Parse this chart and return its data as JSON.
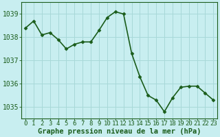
{
  "x": [
    0,
    1,
    2,
    3,
    4,
    5,
    6,
    7,
    8,
    9,
    10,
    11,
    12,
    13,
    14,
    15,
    16,
    17,
    18,
    19,
    20,
    21,
    22,
    23
  ],
  "y": [
    1038.4,
    1038.7,
    1038.1,
    1038.2,
    1037.9,
    1037.5,
    1037.7,
    1037.8,
    1037.8,
    1038.3,
    1038.85,
    1039.1,
    1039.0,
    1037.3,
    1036.3,
    1035.5,
    1035.3,
    1034.8,
    1035.4,
    1035.85,
    1035.9,
    1035.9,
    1035.6,
    1035.3
  ],
  "line_color": "#1a5c1a",
  "marker": "D",
  "marker_size": 2.5,
  "bg_color": "#c8eef0",
  "grid_color": "#a8d8d8",
  "ylabel_ticks": [
    1035,
    1036,
    1037,
    1038,
    1039
  ],
  "xticks": [
    0,
    1,
    2,
    3,
    4,
    5,
    6,
    7,
    8,
    9,
    10,
    11,
    12,
    13,
    14,
    15,
    16,
    17,
    18,
    19,
    20,
    21,
    22,
    23
  ],
  "ylim": [
    1034.5,
    1039.5
  ],
  "xlim": [
    -0.5,
    23.5
  ],
  "xlabel": "Graphe pression niveau de la mer (hPa)",
  "xlabel_fontsize": 7.5,
  "tick_fontsize": 6.5,
  "ytick_fontsize": 7,
  "line_width": 1.2
}
